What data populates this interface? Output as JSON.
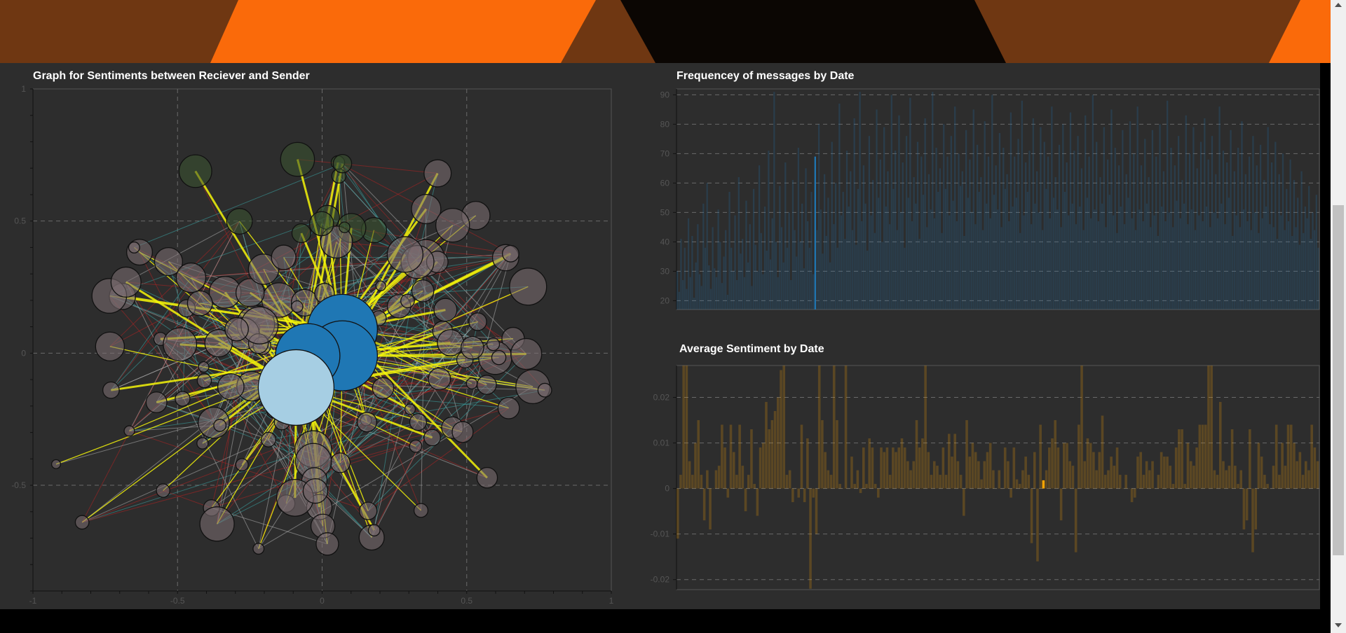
{
  "colors": {
    "banner_brown": "#6f3712",
    "banner_orange": "#fa6a0a",
    "banner_black": "#0b0603",
    "panel_bg": "#2d2d2d",
    "network_node_fill": "#7d6f72",
    "network_node_green": "#3a5430",
    "network_hub_blue": "#1f77b4",
    "network_hub_light": "#a6cee3",
    "network_edge_yellow": "#f4f40a",
    "network_edge_red": "#b22222",
    "network_edge_teal": "#3aa6a6",
    "network_edge_gray": "#b0b0b0",
    "freq_bar": "#1f77b4",
    "sent_bar": "#ffa500"
  },
  "network": {
    "title": "Graph for Sentiments between Reciever and Sender",
    "x_ticks": [
      "-1",
      "-0.5",
      "0",
      "0.5",
      "1"
    ],
    "y_ticks": [
      "1",
      "0.5",
      "0",
      "-0.5"
    ]
  },
  "frequency": {
    "title": "Frequencey of messages by Date",
    "y_ticks": [
      "90",
      "80",
      "70",
      "60",
      "50",
      "40",
      "30",
      "20"
    ]
  },
  "sentiment": {
    "title": "Average Sentiment by Date",
    "y_ticks": [
      "0.02",
      "0.01",
      "0",
      "-0.01",
      "-0.02"
    ]
  },
  "chart_data": [
    {
      "type": "network",
      "title": "Graph for Sentiments between Reciever and Sender",
      "xlim": [
        -1,
        1
      ],
      "ylim": [
        -0.9,
        1
      ],
      "grid": true,
      "node_count_estimate": 120,
      "hubs": [
        {
          "x": 0.07,
          "y": 0.09,
          "color": "#1f77b4"
        },
        {
          "x": 0.07,
          "y": -0.01,
          "color": "#1f77b4"
        },
        {
          "x": -0.05,
          "y": -0.01,
          "color": "#1f77b4"
        },
        {
          "x": -0.09,
          "y": -0.13,
          "color": "#a6cee3"
        }
      ]
    },
    {
      "type": "bar",
      "title": "Frequencey of messages by Date",
      "ylim": [
        17,
        92
      ],
      "grid": true,
      "highlighted_value": 69,
      "values": [
        30,
        23,
        41,
        27,
        38,
        24,
        48,
        28,
        42,
        21,
        33,
        46,
        29,
        25,
        53,
        38,
        60,
        32,
        24,
        45,
        31,
        28,
        51,
        40,
        26,
        35,
        44,
        22,
        57,
        38,
        30,
        49,
        27,
        62,
        36,
        41,
        28,
        54,
        33,
        46,
        25,
        58,
        39,
        30,
        66,
        43,
        29,
        52,
        37,
        71,
        34,
        48,
        91,
        40,
        28,
        59,
        45,
        33,
        67,
        38,
        50,
        27,
        61,
        44,
        35,
        72,
        40,
        53,
        31,
        65,
        47,
        38,
        57,
        29,
        69,
        44,
        80,
        51,
        36,
        63,
        42,
        55,
        33,
        74,
        46,
        60,
        38,
        87,
        49,
        57,
        41,
        71,
        52,
        64,
        44,
        82,
        39,
        58,
        91,
        47,
        66,
        53,
        37,
        76,
        49,
        61,
        43,
        85,
        55,
        68,
        40,
        79,
        52,
        64,
        46,
        90,
        58,
        71,
        44,
        83,
        50,
        67,
        38,
        76,
        55,
        89,
        47,
        62,
        53,
        74,
        41,
        69,
        56,
        82,
        45,
        63,
        51,
        91,
        48,
        72,
        57,
        65,
        43,
        80,
        58,
        69,
        49,
        76,
        54,
        86,
        47,
        70,
        59,
        64,
        42,
        78,
        55,
        68,
        50,
        85,
        46,
        73,
        57,
        62,
        44,
        81,
        53,
        69,
        48,
        90,
        56,
        66,
        51,
        77,
        45,
        72,
        58,
        63,
        47,
        84,
        52,
        69,
        55,
        75,
        43,
        88,
        49,
        67,
        57,
        71,
        46,
        82,
        53,
        64,
        50,
        79,
        44,
        74,
        58,
        69,
        48,
        86,
        55,
        62,
        51,
        73,
        45,
        80,
        57,
        67,
        49,
        84,
        53,
        71,
        46,
        76,
        52,
        65,
        44,
        83,
        55,
        69,
        48,
        90,
        51,
        74,
        47,
        62,
        53,
        79,
        45,
        68,
        56,
        85,
        49,
        72,
        43,
        66,
        52,
        78,
        46,
        63,
        55,
        81,
        48,
        70,
        44,
        86,
        51,
        66,
        47,
        75,
        53,
        62,
        45,
        78,
        49,
        69,
        42,
        80,
        52,
        64,
        47,
        88,
        50,
        72,
        45,
        66,
        54,
        76,
        48,
        61,
        53,
        83,
        46,
        70,
        51,
        79,
        44,
        65,
        49,
        74,
        47,
        82,
        52,
        68,
        45,
        76,
        50,
        63,
        48,
        86,
        53,
        71,
        46,
        67,
        55,
        78,
        42,
        64,
        49,
        72,
        45,
        81,
        51,
        63,
        47,
        69,
        44,
        76,
        50,
        66,
        43,
        73,
        48,
        61,
        52,
        79,
        46,
        67,
        45,
        74,
        41,
        63,
        49,
        70,
        44,
        58,
        47,
        68,
        42,
        61,
        45,
        55,
        39,
        64,
        43,
        52,
        48,
        59,
        41,
        50,
        44,
        56,
        38
      ]
    },
    {
      "type": "bar",
      "title": "Average Sentiment by Date",
      "ylim": [
        -0.0222,
        0.027
      ],
      "grid": true,
      "highlighted_value": 0.0018,
      "values": [
        -0.011,
        0.003,
        0.027,
        0.027,
        0.006,
        0.003,
        0.01,
        0.015,
        0.003,
        -0.007,
        0.004,
        -0.009,
        0.0,
        0.004,
        0.005,
        0.014,
        0.009,
        -0.002,
        0.014,
        0.008,
        0.003,
        0.014,
        0.005,
        -0.005,
        0.003,
        0.013,
        0.001,
        -0.006,
        0.009,
        0.01,
        0.019,
        0.013,
        0.015,
        0.017,
        0.02,
        0.026,
        0.027,
        0.003,
        0.004,
        -0.003,
        0.0,
        -0.002,
        0.014,
        -0.003,
        0.011,
        -0.022,
        -0.002,
        -0.01,
        0.027,
        0.015,
        0.008,
        0.004,
        0.003,
        0.027,
        0.015,
        0.001,
        0.0,
        0.027,
        0.0,
        0.007,
        0.001,
        0.004,
        -0.001,
        0.009,
        0.001,
        0.011,
        0.009,
        0.001,
        -0.002,
        0.009,
        0.008,
        0.009,
        0.003,
        0.009,
        0.008,
        0.009,
        0.011,
        0.009,
        0.006,
        0.004,
        0.006,
        0.015,
        0.009,
        0.011,
        0.027,
        0.008,
        0.003,
        0.006,
        0.005,
        0.003,
        0.009,
        0.003,
        0.012,
        0.007,
        0.012,
        0.006,
        0.003,
        -0.006,
        0.015,
        0.007,
        0.01,
        0.008,
        0.006,
        0.002,
        0.006,
        0.008,
        0.01,
        0.004,
        0.0,
        0.004,
        0.0,
        0.009,
        0.006,
        -0.002,
        0.009,
        0.002,
        0.001,
        0.004,
        0.007,
        0.003,
        -0.012,
        0.008,
        -0.016,
        0.014,
        0.0018,
        0.004,
        0.009,
        0.011,
        0.015,
        0.009,
        -0.007,
        0.01,
        0.01,
        0.006,
        0.005,
        -0.014,
        0.014,
        0.027,
        0.006,
        0.011,
        0.01,
        0.008,
        0.004,
        0.008,
        0.016,
        0.003,
        0.004,
        0.007,
        0.005,
        0.009,
        0.003,
        0.0,
        0.003,
        0.0,
        -0.003,
        -0.002,
        0.007,
        0.008,
        0.003,
        0.006,
        0.004,
        0.006,
        0.0,
        0.003,
        0.008,
        0.007,
        0.007,
        0.005,
        0.001,
        0.009,
        0.013,
        0.013,
        0.001,
        0.01,
        0.006,
        0.005,
        0.009,
        0.014,
        0.014,
        0.014,
        0.027,
        0.027,
        0.004,
        0.003,
        0.019,
        0.006,
        0.004,
        0.005,
        0.013,
        0.005,
        0.001,
        0.004,
        -0.009,
        -0.007,
        0.013,
        -0.014,
        -0.009,
        0.01,
        0.007,
        0.003,
        0.001,
        0.0,
        0.005,
        0.014,
        0.003,
        0.01,
        0.005,
        0.014,
        0.014,
        0.01,
        0.006,
        0.008,
        0.003,
        0.006,
        0.004,
        0.014,
        0.009,
        0.006
      ]
    }
  ]
}
